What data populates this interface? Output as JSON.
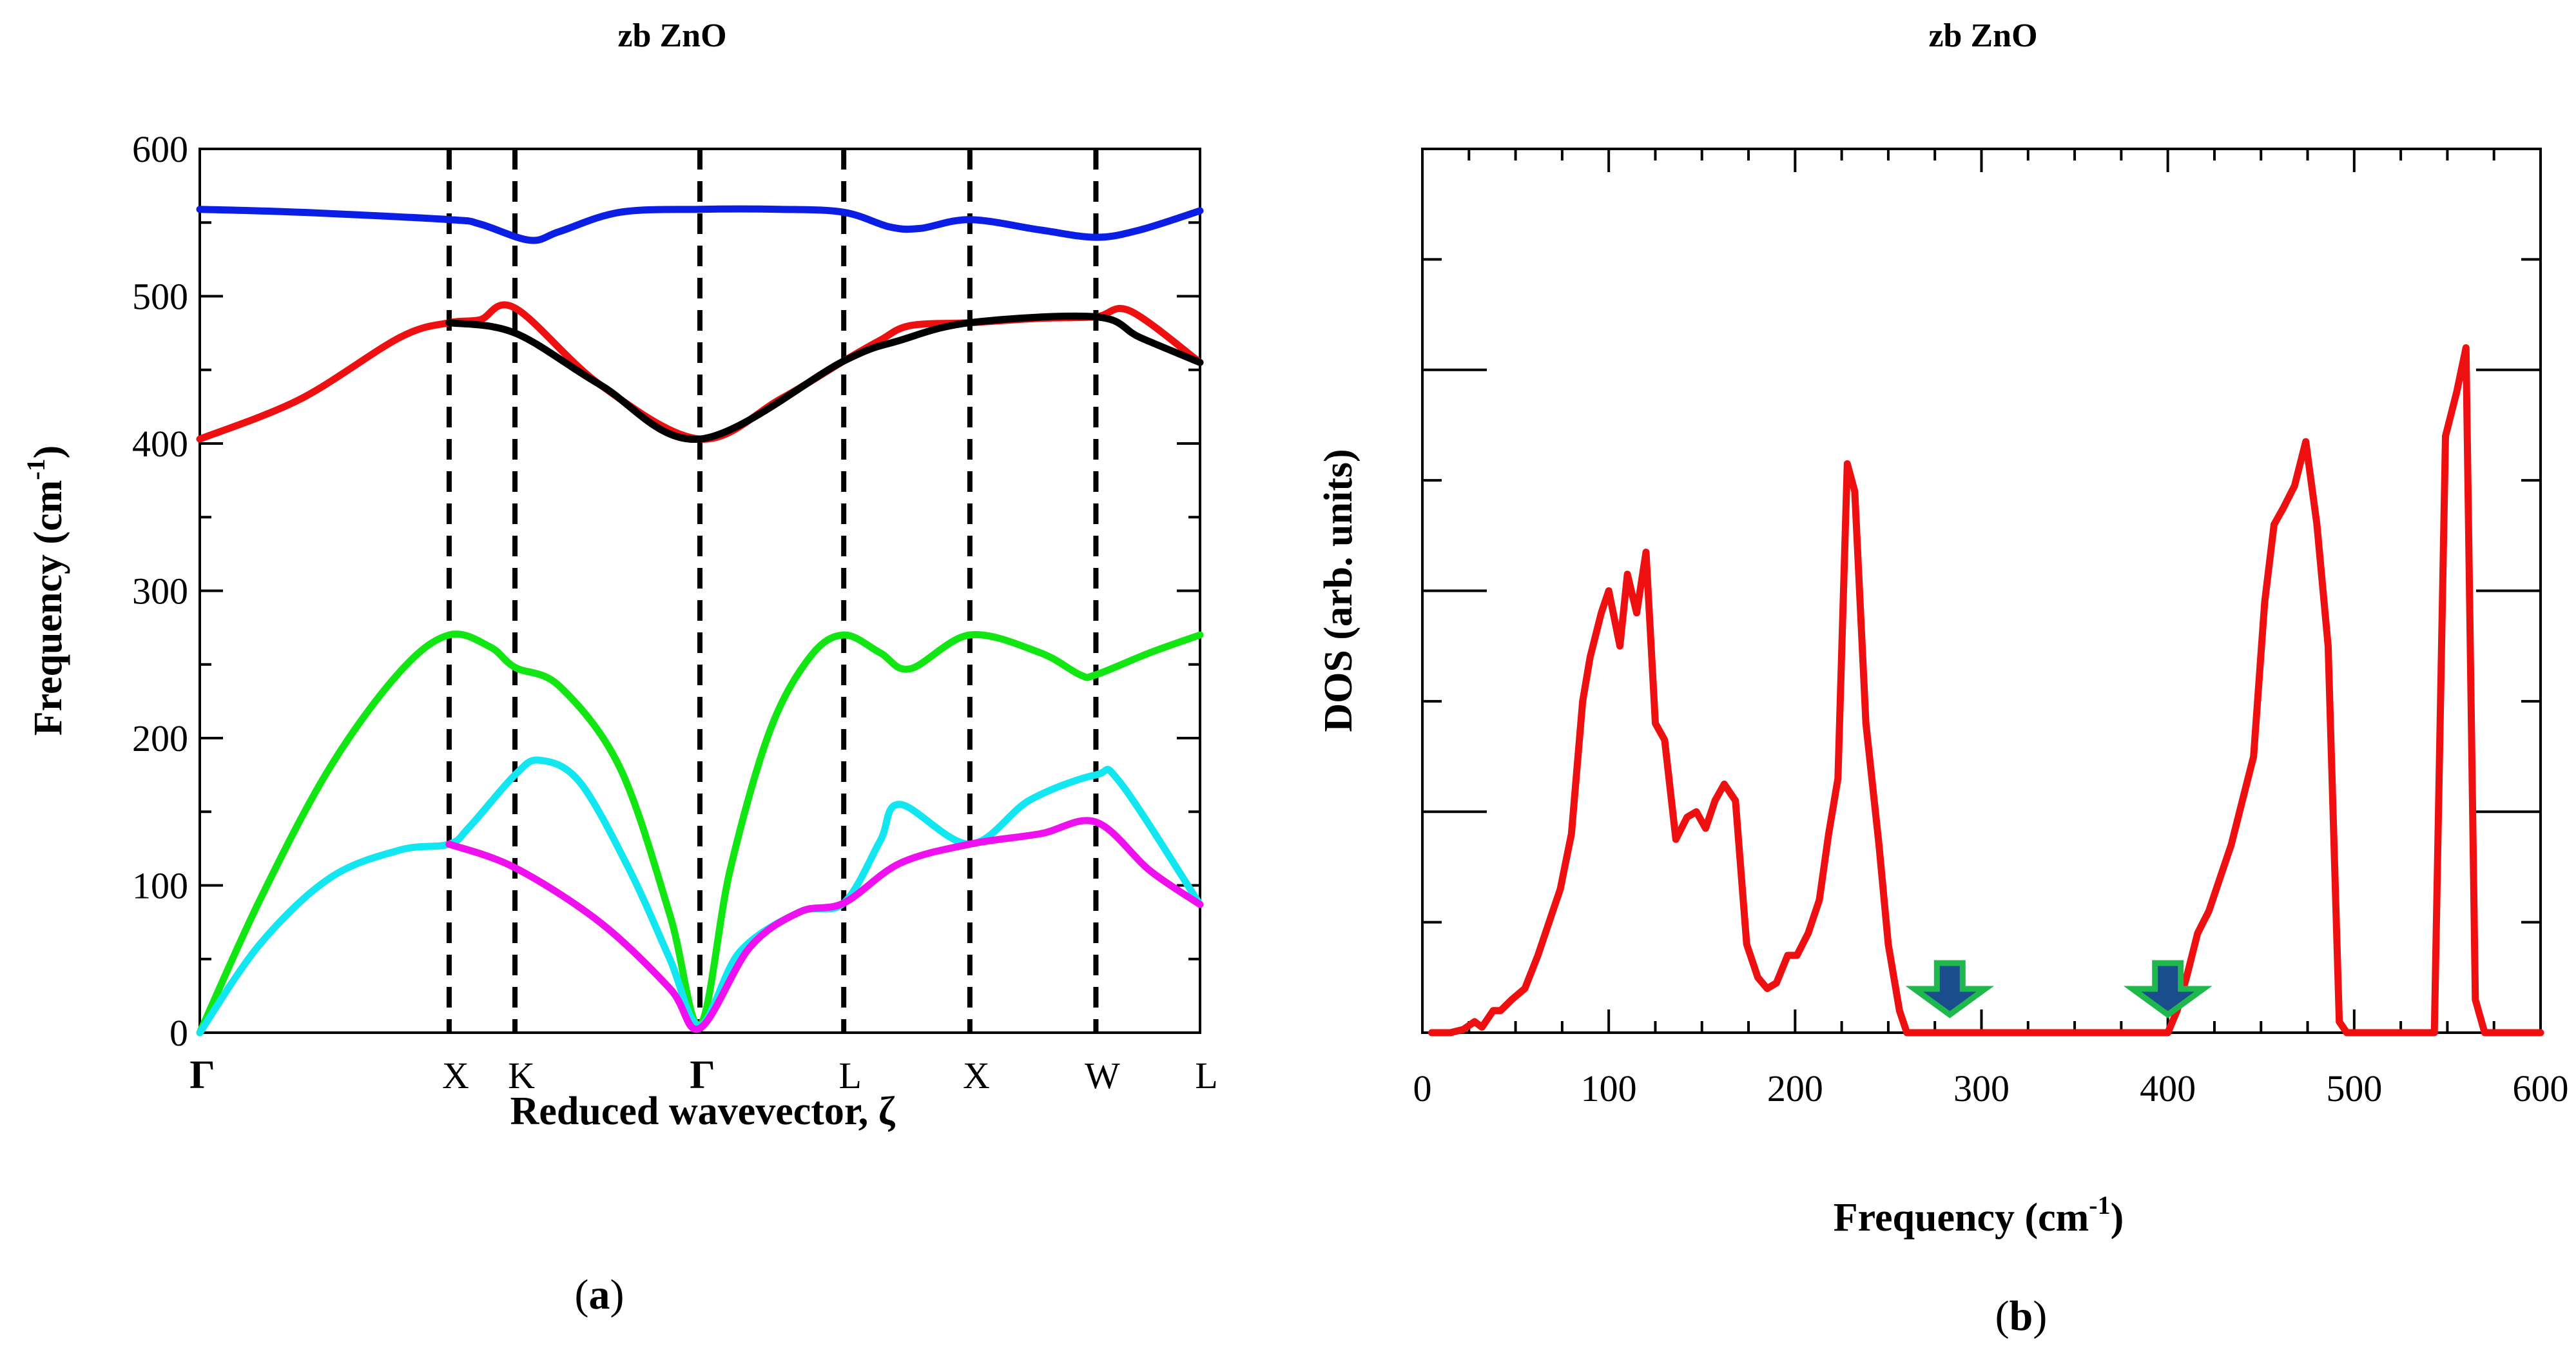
{
  "chart_data": [
    {
      "type": "line",
      "panel_label": "(a)",
      "panel_letter": "a",
      "title": "zb ZnO",
      "ylabel": "Frequency (cm",
      "ylabel_sup": "-1",
      "ylabel_close": ")",
      "xlabel": "Reduced wavevector, ζ",
      "ylim": [
        0,
        600
      ],
      "yticks": [
        0,
        100,
        200,
        300,
        400,
        500,
        600
      ],
      "xlim": [
        0,
        1
      ],
      "high_symmetry_points": [
        {
          "label": "Γ",
          "x": 0.0,
          "dashed": false
        },
        {
          "label": "X",
          "x": 0.2493,
          "dashed": true
        },
        {
          "label": "K",
          "x": 0.3151,
          "dashed": true
        },
        {
          "label": "Γ",
          "x": 0.5,
          "dashed": true
        },
        {
          "label": "L",
          "x": 0.6438,
          "dashed": true
        },
        {
          "label": "X",
          "x": 0.7699,
          "dashed": true
        },
        {
          "label": "W",
          "x": 0.8959,
          "dashed": true
        },
        {
          "label": "L",
          "x": 1.0,
          "dashed": false
        }
      ],
      "series": [
        {
          "name": "optical-upper",
          "color": "#0a1ee6",
          "x": [
            0,
            0.1,
            0.2493,
            0.28,
            0.33,
            0.36,
            0.42,
            0.5,
            0.58,
            0.6438,
            0.69,
            0.72,
            0.7699,
            0.84,
            0.8959,
            0.94,
            1.0
          ],
          "y": [
            559,
            557,
            552,
            549,
            538,
            544,
            557,
            559,
            559,
            557,
            547,
            546,
            552,
            545,
            540,
            545,
            558
          ]
        },
        {
          "name": "optical-red",
          "color": "#ee1010",
          "x": [
            0,
            0.1,
            0.2,
            0.2493,
            0.28,
            0.3151,
            0.4,
            0.5,
            0.58,
            0.6438,
            0.68,
            0.71,
            0.7699,
            0.84,
            0.8959,
            0.93,
            1.0
          ],
          "y": [
            403,
            430,
            472,
            482,
            484,
            492,
            440,
            403,
            430,
            456,
            470,
            480,
            482,
            485,
            486,
            490,
            455
          ]
        },
        {
          "name": "optical-black",
          "color": "#000000",
          "x": [
            0.2493,
            0.3151,
            0.4,
            0.5,
            0.6438,
            0.7,
            0.7699,
            0.8959,
            0.94,
            1.0
          ],
          "y": [
            482,
            475,
            440,
            403,
            456,
            470,
            482,
            486,
            472,
            455
          ]
        },
        {
          "name": "acoustic-green",
          "color": "#12e612",
          "x": [
            0,
            0.06,
            0.13,
            0.2,
            0.2493,
            0.29,
            0.3151,
            0.36,
            0.42,
            0.47,
            0.5,
            0.53,
            0.57,
            0.61,
            0.6438,
            0.68,
            0.71,
            0.7699,
            0.84,
            0.88,
            0.8959,
            0.95,
            1.0
          ],
          "y": [
            0,
            90,
            180,
            245,
            270,
            262,
            248,
            235,
            180,
            80,
            5,
            110,
            205,
            255,
            270,
            258,
            247,
            270,
            258,
            243,
            243,
            258,
            270
          ]
        },
        {
          "name": "acoustic-cyan",
          "color": "#12e6f0",
          "x": [
            0,
            0.06,
            0.13,
            0.2,
            0.2493,
            0.27,
            0.3151,
            0.34,
            0.38,
            0.43,
            0.47,
            0.5,
            0.54,
            0.6,
            0.6438,
            0.68,
            0.7,
            0.7699,
            0.83,
            0.8959,
            0.92,
            1.0
          ],
          "y": [
            0,
            60,
            105,
            124,
            128,
            140,
            175,
            185,
            170,
            110,
            50,
            5,
            55,
            82,
            88,
            130,
            155,
            128,
            158,
            175,
            170,
            87
          ]
        },
        {
          "name": "acoustic-magenta",
          "color": "#ee10ee",
          "x": [
            0.2493,
            0.3151,
            0.4,
            0.47,
            0.5,
            0.55,
            0.6,
            0.6438,
            0.7,
            0.7699,
            0.84,
            0.8959,
            0.95,
            1.0
          ],
          "y": [
            128,
            112,
            75,
            30,
            3,
            58,
            82,
            88,
            115,
            128,
            135,
            143,
            110,
            87
          ]
        }
      ]
    },
    {
      "type": "line",
      "panel_label": "(b)",
      "panel_letter": "b",
      "title": "zb ZnO",
      "ylabel": "DOS (arb. units)",
      "xlabel": "Frequency (cm",
      "xlabel_sup": "-1",
      "xlabel_close": ")",
      "xlim": [
        0,
        600
      ],
      "xticks": [
        0,
        100,
        200,
        300,
        400,
        500,
        600
      ],
      "ylim": [
        0,
        80
      ],
      "y_tick_labels_shown": false,
      "series": [
        {
          "name": "DOS",
          "color": "#ee1010",
          "x": [
            5,
            15,
            22,
            28,
            32,
            38,
            42,
            48,
            55,
            62,
            68,
            74,
            80,
            86,
            90,
            96,
            100,
            106,
            110,
            115,
            120,
            125,
            130,
            136,
            142,
            147,
            152,
            157,
            162,
            168,
            174,
            180,
            185,
            190,
            196,
            201,
            207,
            213,
            218,
            223,
            228,
            232,
            238,
            245,
            250,
            256,
            260,
            265,
            270,
            275,
            300,
            320,
            340,
            360,
            380,
            400,
            405,
            410,
            416,
            422,
            428,
            434,
            440,
            446,
            452,
            457,
            462,
            468,
            474,
            480,
            486,
            492,
            496,
            500,
            506,
            520,
            537,
            543,
            549,
            555,
            560,
            565,
            570,
            600
          ],
          "y": [
            0,
            0,
            0.3,
            1,
            0.5,
            2,
            2,
            3,
            4,
            7,
            10,
            13,
            18,
            30,
            34,
            38,
            40,
            35,
            41.5,
            38,
            43.5,
            28,
            26.5,
            17.5,
            19.5,
            20,
            18.5,
            21,
            22.5,
            21,
            8,
            5,
            4,
            4.5,
            7,
            7,
            9,
            12,
            18,
            23,
            51.5,
            49,
            28,
            17,
            8,
            2,
            0,
            0,
            0,
            0,
            0,
            0,
            0,
            0,
            0,
            0,
            2,
            5,
            9,
            11,
            14,
            17,
            21,
            25,
            39,
            46,
            47.5,
            49.5,
            53.5,
            46,
            35,
            1,
            0,
            0,
            0,
            0,
            0,
            0,
            54,
            58,
            62,
            3,
            0,
            0
          ]
        }
      ],
      "markers": [
        {
          "name": "gap-arrow-lower",
          "x": 283,
          "shape": "down-arrow",
          "fill": "#1a4d8c",
          "stroke": "#1fb84d"
        },
        {
          "name": "gap-arrow-upper",
          "x": 400,
          "shape": "down-arrow",
          "fill": "#1a4d8c",
          "stroke": "#1fb84d"
        }
      ]
    }
  ]
}
